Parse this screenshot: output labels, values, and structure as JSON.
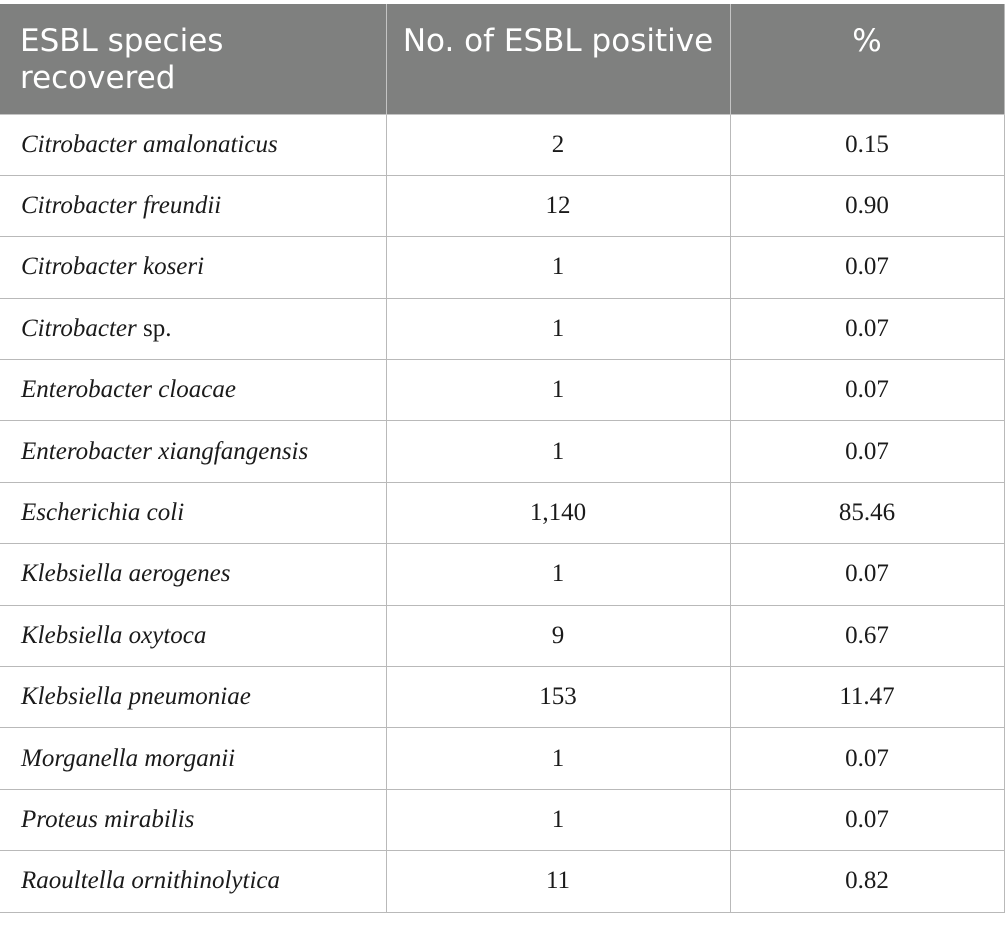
{
  "table": {
    "headers": [
      "ESBL species recovered",
      "No. of ESBL positive",
      "%"
    ],
    "rows": [
      {
        "species": "Citrobacter amalonaticus",
        "suffix": "",
        "count": "2",
        "percent": "0.15"
      },
      {
        "species": "Citrobacter freundii",
        "suffix": "",
        "count": "12",
        "percent": "0.90"
      },
      {
        "species": "Citrobacter koseri",
        "suffix": "",
        "count": "1",
        "percent": "0.07"
      },
      {
        "species": "Citrobacter",
        "suffix": " sp.",
        "count": "1",
        "percent": "0.07"
      },
      {
        "species": "Enterobacter cloacae",
        "suffix": "",
        "count": "1",
        "percent": "0.07"
      },
      {
        "species": "Enterobacter xiangfangensis",
        "suffix": "",
        "count": "1",
        "percent": "0.07"
      },
      {
        "species": "Escherichia coli",
        "suffix": "",
        "count": "1,140",
        "percent": "85.46"
      },
      {
        "species": "Klebsiella aerogenes",
        "suffix": "",
        "count": "1",
        "percent": "0.07"
      },
      {
        "species": "Klebsiella oxytoca",
        "suffix": "",
        "count": "9",
        "percent": "0.67"
      },
      {
        "species": "Klebsiella pneumoniae",
        "suffix": "",
        "count": "153",
        "percent": "11.47"
      },
      {
        "species": "Morganella morganii",
        "suffix": "",
        "count": "1",
        "percent": "0.07"
      },
      {
        "species": "Proteus mirabilis",
        "suffix": "",
        "count": "1",
        "percent": "0.07"
      },
      {
        "species": "Raoultella ornithinolytica",
        "suffix": "",
        "count": "11",
        "percent": "0.82"
      }
    ]
  },
  "colors": {
    "header_background": "#7f807f",
    "header_text": "#ffffff",
    "grid_line": "#b9b9b9"
  }
}
